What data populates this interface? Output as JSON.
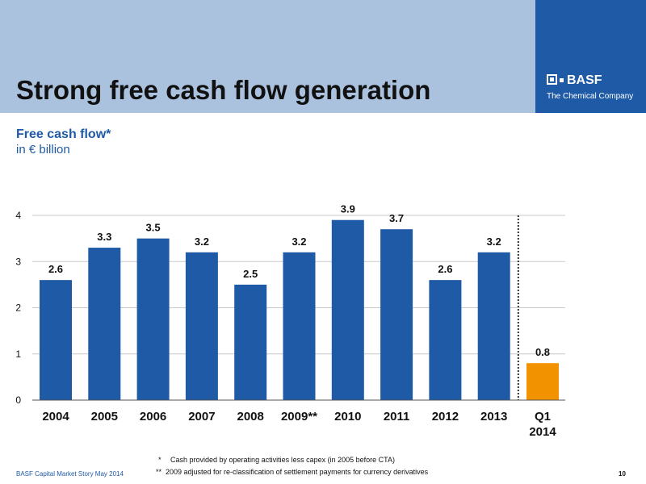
{
  "slide": {
    "title": "Strong free cash flow generation",
    "brand_name": "BASF",
    "brand_tagline": "The Chemical Company"
  },
  "chart_data": {
    "type": "bar",
    "title": "Free cash flow*",
    "subtitle": "in € billion",
    "categories": [
      "2004",
      "2005",
      "2006",
      "2007",
      "2008",
      "2009**",
      "2010",
      "2011",
      "2012",
      "2013",
      "Q1 2014"
    ],
    "values": [
      2.6,
      3.3,
      3.5,
      3.2,
      2.5,
      3.2,
      3.9,
      3.7,
      2.6,
      3.2,
      0.8
    ],
    "ylim": [
      0,
      4
    ],
    "yticks": [
      0,
      1,
      2,
      3,
      4
    ],
    "grid": true,
    "legend": "none",
    "colors": {
      "annual_bar": "#1f5aa6",
      "quarter_bar": "#f39200",
      "gridline": "#c8c8c8",
      "divider": "#333333"
    }
  },
  "footnotes": [
    {
      "marker": "*",
      "text": "Cash provided by operating activities less capex (in 2005 before CTA)"
    },
    {
      "marker": "**",
      "text": "2009 adjusted for re-classification of settlement payments for currency derivatives"
    }
  ],
  "footer": {
    "source": "BASF Capital Market Story May 2014",
    "page": "10"
  }
}
